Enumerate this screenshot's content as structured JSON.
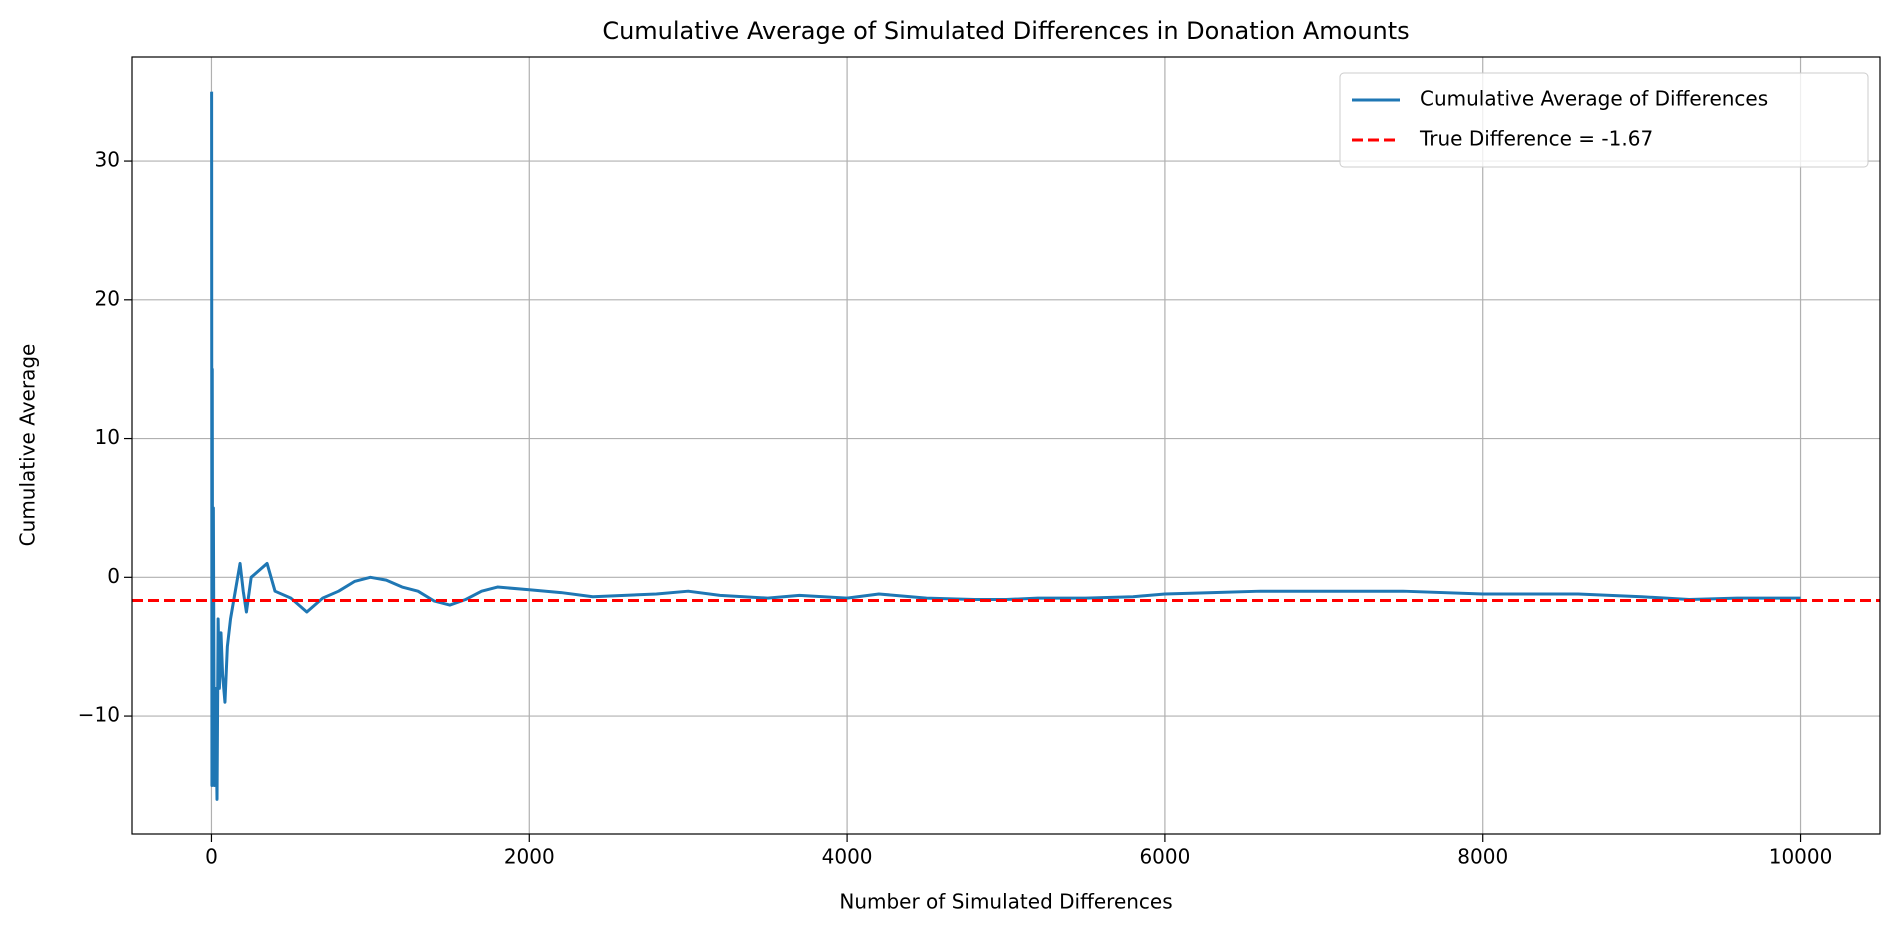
{
  "chart_data": {
    "type": "line",
    "title": "Cumulative Average of Simulated Differences in Donation Amounts",
    "xlabel": "Number of Simulated Differences",
    "ylabel": "Cumulative Average",
    "x": [
      1,
      3,
      5,
      8,
      12,
      18,
      25,
      30,
      35,
      42,
      50,
      60,
      70,
      85,
      100,
      120,
      150,
      180,
      200,
      220,
      250,
      300,
      350,
      400,
      500,
      600,
      700,
      800,
      900,
      1000,
      1100,
      1200,
      1300,
      1400,
      1500,
      1600,
      1700,
      1800,
      2000,
      2200,
      2400,
      2600,
      2800,
      3000,
      3200,
      3500,
      3700,
      4000,
      4200,
      4500,
      4800,
      5000,
      5200,
      5500,
      5800,
      6000,
      6300,
      6600,
      7000,
      7500,
      8000,
      8300,
      8600,
      9000,
      9300,
      9600,
      10000
    ],
    "series": [
      {
        "name": "Cumulative Average of Differences",
        "color": "#1f77b4",
        "values": [
          35,
          -15,
          15,
          -14,
          5,
          -15,
          -8,
          -12,
          -16,
          -3,
          -8,
          -4,
          -7,
          -9,
          -5,
          -3,
          -1,
          1,
          -1,
          -2.5,
          0,
          0.5,
          1,
          -1,
          -1.5,
          -2.5,
          -1.5,
          -1,
          -0.3,
          0,
          -0.2,
          -0.7,
          -1,
          -1.7,
          -2,
          -1.6,
          -1,
          -0.7,
          -0.9,
          -1.1,
          -1.4,
          -1.3,
          -1.2,
          -1,
          -1.3,
          -1.5,
          -1.3,
          -1.5,
          -1.2,
          -1.5,
          -1.6,
          -1.6,
          -1.5,
          -1.5,
          -1.4,
          -1.2,
          -1.1,
          -1,
          -1,
          -1,
          -1.2,
          -1.2,
          -1.2,
          -1.4,
          -1.6,
          -1.5,
          -1.5
        ]
      }
    ],
    "reference_line": {
      "name": "True Difference = -1.67",
      "value": -1.67,
      "color": "#ff0000"
    },
    "xlim": [
      -500,
      10500
    ],
    "xticks": [
      0,
      2000,
      4000,
      6000,
      8000,
      10000
    ],
    "ylim": [
      -18.5,
      37.5
    ],
    "yticks": [
      {
        "value": -10,
        "label": "−10"
      },
      0,
      10,
      20,
      30
    ],
    "grid": true,
    "legend": "upper right"
  }
}
